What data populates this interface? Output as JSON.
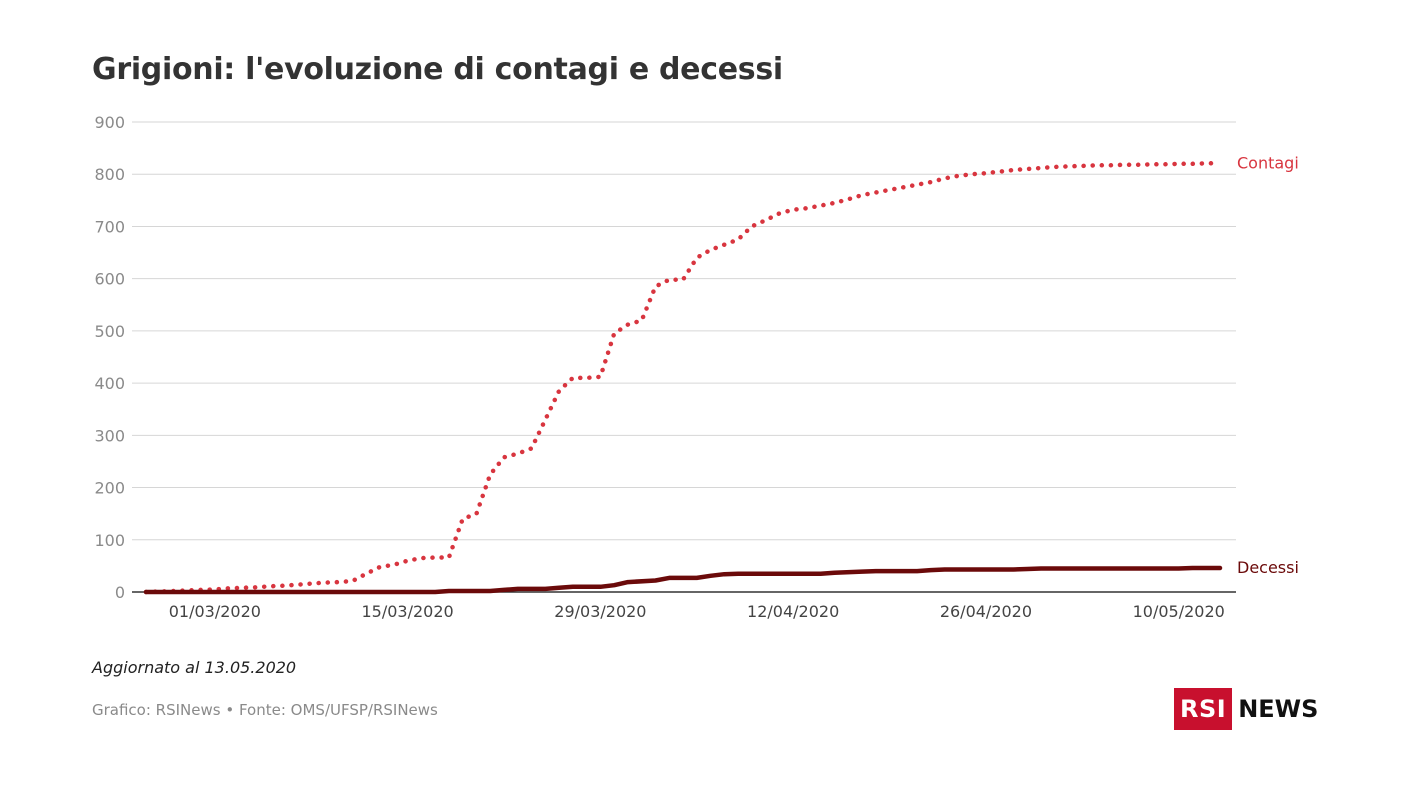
{
  "title": "Grigioni: l'evoluzione di contagi e decessi",
  "updated": "Aggiornato al 13.05.2020",
  "source": "Grafico: RSINews • Fonte: OMS/UFSP/RSINews",
  "logo": {
    "box": "RSI",
    "text": "NEWS"
  },
  "colors": {
    "contagi": "#d8353f",
    "decessi": "#6b0a0a",
    "grid": "#d6d6d6",
    "axis": "#333333"
  },
  "chart_data": {
    "type": "line",
    "title": "Grigioni: l'evoluzione di contagi e decessi",
    "xlabel": "",
    "ylabel": "",
    "ylim": [
      0,
      900
    ],
    "yticks": [
      "0",
      "100",
      "200",
      "300",
      "400",
      "500",
      "600",
      "700",
      "800",
      "900"
    ],
    "x_range": [
      "2020-02-25",
      "2020-05-13"
    ],
    "xticks": [
      {
        "date": "2020-03-01",
        "label": "01/03/2020"
      },
      {
        "date": "2020-03-15",
        "label": "15/03/2020"
      },
      {
        "date": "2020-03-29",
        "label": "29/03/2020"
      },
      {
        "date": "2020-04-12",
        "label": "12/04/2020"
      },
      {
        "date": "2020-04-26",
        "label": "26/04/2020"
      },
      {
        "date": "2020-05-10",
        "label": "10/05/2020"
      }
    ],
    "grid": true,
    "legend": "inline-right",
    "series": [
      {
        "name": "Contagi",
        "style": "dotted",
        "points": [
          [
            "2020-02-25",
            0
          ],
          [
            "2020-02-26",
            1
          ],
          [
            "2020-02-27",
            2
          ],
          [
            "2020-02-28",
            3
          ],
          [
            "2020-02-29",
            4
          ],
          [
            "2020-03-01",
            5
          ],
          [
            "2020-03-02",
            7
          ],
          [
            "2020-03-03",
            8
          ],
          [
            "2020-03-04",
            9
          ],
          [
            "2020-03-05",
            11
          ],
          [
            "2020-03-06",
            12
          ],
          [
            "2020-03-07",
            14
          ],
          [
            "2020-03-08",
            16
          ],
          [
            "2020-03-09",
            18
          ],
          [
            "2020-03-10",
            19
          ],
          [
            "2020-03-11",
            21
          ],
          [
            "2020-03-12",
            35
          ],
          [
            "2020-03-13",
            48
          ],
          [
            "2020-03-14",
            52
          ],
          [
            "2020-03-15",
            60
          ],
          [
            "2020-03-16",
            65
          ],
          [
            "2020-03-17",
            66
          ],
          [
            "2020-03-18",
            66
          ],
          [
            "2020-03-19",
            140
          ],
          [
            "2020-03-20",
            150
          ],
          [
            "2020-03-21",
            225
          ],
          [
            "2020-03-22",
            258
          ],
          [
            "2020-03-23",
            265
          ],
          [
            "2020-03-24",
            275
          ],
          [
            "2020-03-25",
            330
          ],
          [
            "2020-03-26",
            385
          ],
          [
            "2020-03-27",
            410
          ],
          [
            "2020-03-28",
            410
          ],
          [
            "2020-03-29",
            412
          ],
          [
            "2020-03-30",
            495
          ],
          [
            "2020-03-31",
            512
          ],
          [
            "2020-04-01",
            520
          ],
          [
            "2020-04-02",
            585
          ],
          [
            "2020-04-03",
            598
          ],
          [
            "2020-04-04",
            598
          ],
          [
            "2020-04-05",
            640
          ],
          [
            "2020-04-06",
            655
          ],
          [
            "2020-04-07",
            665
          ],
          [
            "2020-04-08",
            675
          ],
          [
            "2020-04-09",
            700
          ],
          [
            "2020-04-10",
            712
          ],
          [
            "2020-04-11",
            725
          ],
          [
            "2020-04-12",
            732
          ],
          [
            "2020-04-13",
            735
          ],
          [
            "2020-04-14",
            740
          ],
          [
            "2020-04-15",
            745
          ],
          [
            "2020-04-16",
            752
          ],
          [
            "2020-04-17",
            760
          ],
          [
            "2020-04-18",
            765
          ],
          [
            "2020-04-19",
            770
          ],
          [
            "2020-04-20",
            775
          ],
          [
            "2020-04-21",
            780
          ],
          [
            "2020-04-22",
            785
          ],
          [
            "2020-04-23",
            792
          ],
          [
            "2020-04-24",
            797
          ],
          [
            "2020-04-25",
            800
          ],
          [
            "2020-04-26",
            802
          ],
          [
            "2020-04-27",
            805
          ],
          [
            "2020-04-28",
            808
          ],
          [
            "2020-04-29",
            810
          ],
          [
            "2020-04-30",
            812
          ],
          [
            "2020-05-01",
            814
          ],
          [
            "2020-05-02",
            815
          ],
          [
            "2020-05-03",
            816
          ],
          [
            "2020-05-04",
            817
          ],
          [
            "2020-05-05",
            817
          ],
          [
            "2020-05-06",
            818
          ],
          [
            "2020-05-07",
            818
          ],
          [
            "2020-05-08",
            819
          ],
          [
            "2020-05-09",
            819
          ],
          [
            "2020-05-10",
            820
          ],
          [
            "2020-05-11",
            820
          ],
          [
            "2020-05-12",
            821
          ],
          [
            "2020-05-13",
            821
          ]
        ]
      },
      {
        "name": "Decessi",
        "style": "solid",
        "points": [
          [
            "2020-02-25",
            0
          ],
          [
            "2020-03-17",
            0
          ],
          [
            "2020-03-18",
            2
          ],
          [
            "2020-03-21",
            2
          ],
          [
            "2020-03-22",
            4
          ],
          [
            "2020-03-23",
            6
          ],
          [
            "2020-03-25",
            6
          ],
          [
            "2020-03-26",
            8
          ],
          [
            "2020-03-27",
            10
          ],
          [
            "2020-03-29",
            10
          ],
          [
            "2020-03-30",
            13
          ],
          [
            "2020-03-31",
            19
          ],
          [
            "2020-04-02",
            22
          ],
          [
            "2020-04-03",
            27
          ],
          [
            "2020-04-05",
            27
          ],
          [
            "2020-04-06",
            31
          ],
          [
            "2020-04-07",
            34
          ],
          [
            "2020-04-08",
            35
          ],
          [
            "2020-04-14",
            35
          ],
          [
            "2020-04-15",
            37
          ],
          [
            "2020-04-17",
            39
          ],
          [
            "2020-04-18",
            40
          ],
          [
            "2020-04-21",
            40
          ],
          [
            "2020-04-22",
            42
          ],
          [
            "2020-04-23",
            43
          ],
          [
            "2020-04-28",
            43
          ],
          [
            "2020-04-29",
            44
          ],
          [
            "2020-04-30",
            45
          ],
          [
            "2020-05-10",
            45
          ],
          [
            "2020-05-11",
            46
          ],
          [
            "2020-05-13",
            46
          ]
        ]
      }
    ]
  }
}
